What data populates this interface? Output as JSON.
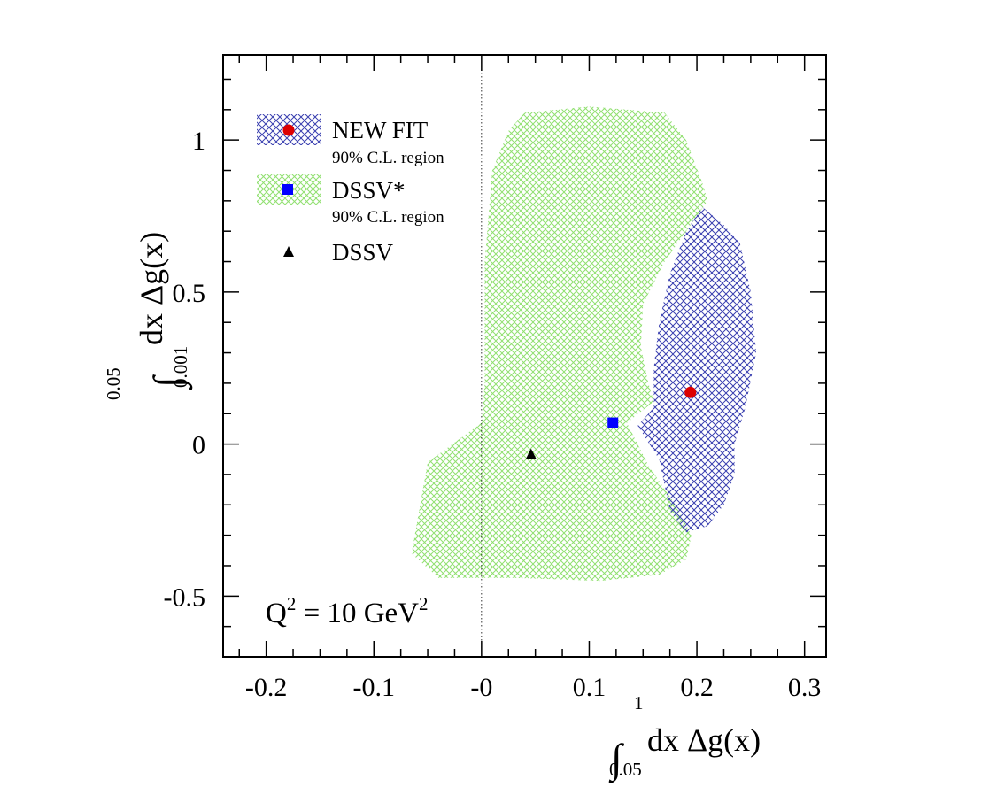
{
  "chart_data": {
    "type": "scatter",
    "title": "",
    "xlabel": {
      "integral": "∫",
      "upper": "1",
      "lower": "0.05",
      "text": "dx Δg(x)"
    },
    "ylabel": {
      "integral": "∫",
      "upper": "0.05",
      "lower": "0.001",
      "text": "dx Δg(x)"
    },
    "xlim": [
      -0.24,
      0.32
    ],
    "ylim": [
      -0.7,
      1.28
    ],
    "xticks": [
      -0.2,
      -0.1,
      0,
      0.1,
      0.2,
      0.3
    ],
    "xtick_labels": [
      "-0.2",
      "-0.1",
      "-0",
      "0.1",
      "0.2",
      "0.3"
    ],
    "yticks": [
      -0.5,
      0,
      0.5,
      1
    ],
    "ytick_labels": [
      "-0.5",
      "0",
      "0.5",
      "1"
    ],
    "reference_lines": {
      "x": 0,
      "y": 0,
      "style": "dotted"
    },
    "annotation": {
      "base": "Q",
      "exp": "2",
      "mid": " = 10 GeV",
      "exp2": "2"
    },
    "regions": [
      {
        "name": "DSSV* 90% C.L. region",
        "color": "#90e070",
        "polygon": [
          [
            0.04,
            1.09
          ],
          [
            0.1,
            1.11
          ],
          [
            0.17,
            1.09
          ],
          [
            0.19,
            1.0
          ],
          [
            0.205,
            0.86
          ],
          [
            0.21,
            0.8
          ],
          [
            0.17,
            0.6
          ],
          [
            0.15,
            0.46
          ],
          [
            0.148,
            0.32
          ],
          [
            0.155,
            0.2
          ],
          [
            0.16,
            0.14
          ],
          [
            0.135,
            0.07
          ],
          [
            0.155,
            -0.07
          ],
          [
            0.18,
            -0.2
          ],
          [
            0.195,
            -0.3
          ],
          [
            0.19,
            -0.38
          ],
          [
            0.165,
            -0.43
          ],
          [
            0.11,
            -0.45
          ],
          [
            0.03,
            -0.44
          ],
          [
            -0.04,
            -0.44
          ],
          [
            -0.065,
            -0.36
          ],
          [
            -0.05,
            -0.06
          ],
          [
            0,
            0.07
          ],
          [
            0.003,
            0.2
          ],
          [
            0.003,
            0.6
          ],
          [
            0.01,
            0.9
          ],
          [
            0.025,
            1.03
          ]
        ]
      },
      {
        "name": "NEW FIT 90% C.L. region",
        "color": "#3a40b0",
        "polygon": [
          [
            0.205,
            0.78
          ],
          [
            0.225,
            0.72
          ],
          [
            0.24,
            0.66
          ],
          [
            0.25,
            0.5
          ],
          [
            0.255,
            0.3
          ],
          [
            0.245,
            0.12
          ],
          [
            0.235,
            0.0
          ],
          [
            0.235,
            -0.1
          ],
          [
            0.225,
            -0.2
          ],
          [
            0.21,
            -0.27
          ],
          [
            0.19,
            -0.29
          ],
          [
            0.175,
            -0.22
          ],
          [
            0.165,
            -0.05
          ],
          [
            0.145,
            0.06
          ],
          [
            0.16,
            0.12
          ],
          [
            0.16,
            0.25
          ],
          [
            0.165,
            0.4
          ],
          [
            0.175,
            0.56
          ],
          [
            0.19,
            0.7
          ]
        ]
      }
    ],
    "points": [
      {
        "name": "NEW FIT",
        "x": 0.194,
        "y": 0.17,
        "marker": "circle",
        "color": "#dd0000"
      },
      {
        "name": "DSSV*",
        "x": 0.122,
        "y": 0.07,
        "marker": "square",
        "color": "#0000ff"
      },
      {
        "name": "DSSV",
        "x": 0.046,
        "y": -0.035,
        "marker": "triangle",
        "color": "#000000"
      }
    ],
    "legend": {
      "position": "top-left",
      "entries": [
        {
          "label": "NEW FIT",
          "sublabel": "90% C.L. region",
          "marker": "circle",
          "color": "#dd0000",
          "fill": "newfit"
        },
        {
          "label": "DSSV*",
          "sublabel": "90% C.L. region",
          "marker": "square",
          "color": "#0000ff",
          "fill": "dssv"
        },
        {
          "label": "DSSV",
          "sublabel": "",
          "marker": "triangle",
          "color": "#000000",
          "fill": "none"
        }
      ]
    }
  }
}
